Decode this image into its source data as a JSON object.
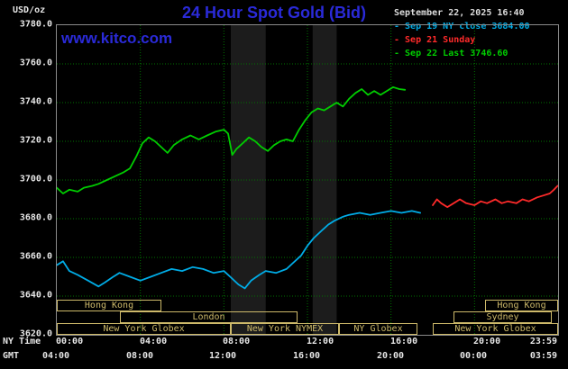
{
  "header": {
    "units": "USD/oz",
    "title": "24 Hour Spot Gold (Bid)",
    "datetime": "September 22, 2025 16:40",
    "watermark": "www.kitco.com"
  },
  "legend": {
    "entries": [
      {
        "label": "- Sep 19 NY close 3684.00",
        "color": "#00ace6"
      },
      {
        "label": "- Sep 21 Sunday",
        "color": "#ff2a2a"
      },
      {
        "label": "- Sep 22 Last 3746.60",
        "color": "#00cd00"
      }
    ]
  },
  "axes": {
    "ny_label": "NY Time",
    "gmt_label": "GMT",
    "y_ticks": [
      {
        "value": 3780,
        "label": "3780.0"
      },
      {
        "value": 3760,
        "label": "3760.0"
      },
      {
        "value": 3740,
        "label": "3740.0"
      },
      {
        "value": 3720,
        "label": "3720.0"
      },
      {
        "value": 3700,
        "label": "3700.0"
      },
      {
        "value": 3680,
        "label": "3680.0"
      },
      {
        "value": 3660,
        "label": "3660.0"
      },
      {
        "value": 3640,
        "label": "3640.0"
      },
      {
        "value": 3620,
        "label": "3620.0"
      }
    ],
    "x_ticks": [
      {
        "h": 0,
        "ny": "00:00",
        "gmt": "04:00"
      },
      {
        "h": 4,
        "ny": "04:00",
        "gmt": "08:00"
      },
      {
        "h": 8,
        "ny": "08:00",
        "gmt": "12:00"
      },
      {
        "h": 12,
        "ny": "12:00",
        "gmt": "16:00"
      },
      {
        "h": 16,
        "ny": "16:00",
        "gmt": "20:00"
      },
      {
        "h": 20,
        "ny": "20:00",
        "gmt": "00:00"
      },
      {
        "h": 23.983,
        "ny": "23:59",
        "gmt": "03:59"
      }
    ]
  },
  "sessions": {
    "color": "#cdb96a",
    "boxes": [
      {
        "row": 0,
        "start": 0,
        "end": 5,
        "label": "Hong Kong"
      },
      {
        "row": 0,
        "start": 20.5,
        "end": 24,
        "label": "Hong Kong"
      },
      {
        "row": 1,
        "start": 3,
        "end": 11.5,
        "label": "London"
      },
      {
        "row": 1,
        "start": 19,
        "end": 23.7,
        "label": "Sydney"
      },
      {
        "row": 2,
        "start": 0,
        "end": 8.33,
        "label": "New York Globex"
      },
      {
        "row": 2,
        "start": 8.33,
        "end": 13.5,
        "label": "New York NYMEX"
      },
      {
        "row": 2,
        "start": 13.5,
        "end": 17.25,
        "label": "NY Globex"
      },
      {
        "row": 2,
        "start": 18,
        "end": 24,
        "label": "New York Globex"
      }
    ]
  },
  "chart_data": {
    "type": "line",
    "title": "24 Hour Spot Gold (Bid)",
    "xlabel": "NY Time (hours)",
    "ylabel": "USD/oz",
    "xlim": [
      0,
      24
    ],
    "ylim": [
      3620,
      3780
    ],
    "x_grid_step": 4,
    "y_grid_step": 20,
    "grid_on": true,
    "grid_color": "#007300",
    "band_color": "#1c1c1c",
    "shaded_bands": [
      {
        "start": 8.33,
        "end": 10.0
      },
      {
        "start": 12.25,
        "end": 13.4
      }
    ],
    "series": [
      {
        "name": "Sep 19 NY close",
        "color": "#00ace6",
        "close": 3684.0,
        "points": [
          [
            0,
            3656
          ],
          [
            0.3,
            3658
          ],
          [
            0.6,
            3653
          ],
          [
            1,
            3651
          ],
          [
            1.5,
            3648
          ],
          [
            2,
            3645
          ],
          [
            2.3,
            3647
          ],
          [
            2.7,
            3650
          ],
          [
            3,
            3652
          ],
          [
            3.5,
            3650
          ],
          [
            4,
            3648
          ],
          [
            4.5,
            3650
          ],
          [
            5,
            3652
          ],
          [
            5.5,
            3654
          ],
          [
            6,
            3653
          ],
          [
            6.5,
            3655
          ],
          [
            7,
            3654
          ],
          [
            7.5,
            3652
          ],
          [
            8,
            3653
          ],
          [
            8.3,
            3650
          ],
          [
            8.7,
            3646
          ],
          [
            9,
            3644
          ],
          [
            9.3,
            3648
          ],
          [
            9.7,
            3651
          ],
          [
            10,
            3653
          ],
          [
            10.5,
            3652
          ],
          [
            11,
            3654
          ],
          [
            11.3,
            3657
          ],
          [
            11.7,
            3661
          ],
          [
            12,
            3666
          ],
          [
            12.3,
            3670
          ],
          [
            12.7,
            3674
          ],
          [
            13,
            3677
          ],
          [
            13.3,
            3679
          ],
          [
            13.7,
            3681
          ],
          [
            14,
            3682
          ],
          [
            14.5,
            3683
          ],
          [
            15,
            3682
          ],
          [
            15.5,
            3683
          ],
          [
            16,
            3684
          ],
          [
            16.5,
            3683
          ],
          [
            17,
            3684
          ],
          [
            17.4,
            3683
          ]
        ]
      },
      {
        "name": "Sep 21 Sunday",
        "color": "#ff2a2a",
        "points": [
          [
            18,
            3687
          ],
          [
            18.2,
            3690
          ],
          [
            18.4,
            3688
          ],
          [
            18.7,
            3686
          ],
          [
            19,
            3688
          ],
          [
            19.3,
            3690
          ],
          [
            19.6,
            3688
          ],
          [
            20,
            3687
          ],
          [
            20.3,
            3689
          ],
          [
            20.6,
            3688
          ],
          [
            21,
            3690
          ],
          [
            21.3,
            3688
          ],
          [
            21.6,
            3689
          ],
          [
            22,
            3688
          ],
          [
            22.3,
            3690
          ],
          [
            22.6,
            3689
          ],
          [
            23,
            3691
          ],
          [
            23.3,
            3692
          ],
          [
            23.6,
            3693
          ],
          [
            23.8,
            3695
          ],
          [
            23.98,
            3697
          ]
        ]
      },
      {
        "name": "Sep 22 Last",
        "color": "#00cd00",
        "last": 3746.6,
        "points": [
          [
            0,
            3696
          ],
          [
            0.3,
            3693
          ],
          [
            0.6,
            3695
          ],
          [
            1,
            3694
          ],
          [
            1.3,
            3696
          ],
          [
            1.7,
            3697
          ],
          [
            2,
            3698
          ],
          [
            2.4,
            3700
          ],
          [
            2.8,
            3702
          ],
          [
            3.2,
            3704
          ],
          [
            3.5,
            3706
          ],
          [
            3.8,
            3712
          ],
          [
            4.1,
            3719
          ],
          [
            4.4,
            3722
          ],
          [
            4.7,
            3720
          ],
          [
            5,
            3717
          ],
          [
            5.3,
            3714
          ],
          [
            5.6,
            3718
          ],
          [
            6,
            3721
          ],
          [
            6.4,
            3723
          ],
          [
            6.8,
            3721
          ],
          [
            7.2,
            3723
          ],
          [
            7.6,
            3725
          ],
          [
            8,
            3726
          ],
          [
            8.2,
            3724
          ],
          [
            8.4,
            3713
          ],
          [
            8.6,
            3716
          ],
          [
            8.9,
            3719
          ],
          [
            9.2,
            3722
          ],
          [
            9.5,
            3720
          ],
          [
            9.8,
            3717
          ],
          [
            10.1,
            3715
          ],
          [
            10.4,
            3718
          ],
          [
            10.7,
            3720
          ],
          [
            11,
            3721
          ],
          [
            11.3,
            3720
          ],
          [
            11.6,
            3726
          ],
          [
            11.9,
            3731
          ],
          [
            12.2,
            3735
          ],
          [
            12.5,
            3737
          ],
          [
            12.8,
            3736
          ],
          [
            13.1,
            3738
          ],
          [
            13.4,
            3740
          ],
          [
            13.7,
            3738
          ],
          [
            14,
            3742
          ],
          [
            14.3,
            3745
          ],
          [
            14.6,
            3747
          ],
          [
            14.9,
            3744
          ],
          [
            15.2,
            3746
          ],
          [
            15.5,
            3744
          ],
          [
            15.8,
            3746
          ],
          [
            16.1,
            3748
          ],
          [
            16.4,
            3747
          ],
          [
            16.67,
            3746.6
          ]
        ]
      }
    ]
  }
}
